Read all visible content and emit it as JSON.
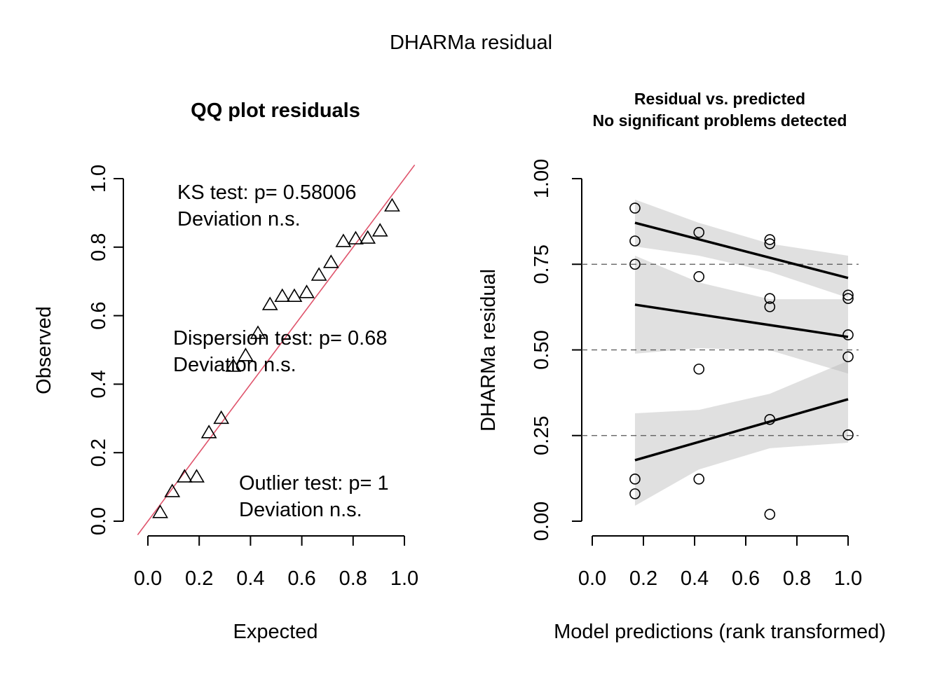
{
  "title": "DHARMa residual",
  "chart_data": [
    {
      "type": "scatter",
      "title": "QQ plot residuals",
      "xlabel": "Expected",
      "ylabel": "Observed",
      "xlim": [
        0,
        1
      ],
      "ylim": [
        0,
        1
      ],
      "xticks": [
        "0.0",
        "0.2",
        "0.4",
        "0.6",
        "0.8",
        "1.0"
      ],
      "yticks": [
        "0.0",
        "0.2",
        "0.4",
        "0.6",
        "0.8",
        "1.0"
      ],
      "reference_line": {
        "slope": 1,
        "intercept": 0,
        "color": "#DF536B"
      },
      "expected": [
        0.048,
        0.095,
        0.143,
        0.19,
        0.238,
        0.286,
        0.333,
        0.381,
        0.429,
        0.476,
        0.524,
        0.571,
        0.619,
        0.667,
        0.714,
        0.762,
        0.81,
        0.857,
        0.905,
        0.952
      ],
      "observed": [
        0.025,
        0.086,
        0.129,
        0.129,
        0.258,
        0.3,
        0.452,
        0.483,
        0.548,
        0.632,
        0.656,
        0.656,
        0.667,
        0.718,
        0.755,
        0.816,
        0.824,
        0.826,
        0.847,
        0.92
      ],
      "annotations": [
        {
          "lines": [
            "KS test: p= 0.58006",
            "Deviation  n.s."
          ]
        },
        {
          "lines": [
            "Dispersion test: p= 0.68",
            "Deviation  n.s."
          ]
        },
        {
          "lines": [
            "Outlier test: p= 1",
            "Deviation  n.s."
          ]
        }
      ]
    },
    {
      "type": "scatter",
      "title": [
        "Residual vs. predicted",
        "No significant problems detected"
      ],
      "xlabel": "Model predictions (rank transformed)",
      "ylabel": "DHARMa residual",
      "xlim": [
        0,
        1
      ],
      "ylim": [
        0,
        1
      ],
      "xticks": [
        "0.0",
        "0.2",
        "0.4",
        "0.6",
        "0.8",
        "1.0"
      ],
      "yticks": [
        "0.00",
        "0.25",
        "0.50",
        "0.75",
        "1.00"
      ],
      "hlines": [
        0.25,
        0.5,
        0.75
      ],
      "points": {
        "x": [
          0.167,
          0.167,
          0.167,
          0.167,
          0.167,
          0.417,
          0.417,
          0.417,
          0.417,
          0.694,
          0.694,
          0.694,
          0.694,
          0.694,
          0.694,
          1.0,
          1.0,
          1.0,
          1.0,
          1.0
        ],
        "y": [
          0.914,
          0.818,
          0.75,
          0.123,
          0.08,
          0.843,
          0.714,
          0.444,
          0.123,
          0.822,
          0.81,
          0.65,
          0.626,
          0.297,
          0.02,
          0.66,
          0.65,
          0.544,
          0.48,
          0.252
        ]
      },
      "quantile_lines": [
        {
          "quantile": 0.75,
          "x": [
            0.167,
            1.0
          ],
          "y": [
            0.871,
            0.71
          ]
        },
        {
          "quantile": 0.5,
          "x": [
            0.167,
            1.0
          ],
          "y": [
            0.632,
            0.538
          ]
        },
        {
          "quantile": 0.25,
          "x": [
            0.167,
            1.0
          ],
          "y": [
            0.178,
            0.356
          ]
        }
      ],
      "bands": [
        {
          "x": [
            0.167,
            0.417,
            0.694,
            1.0
          ],
          "upper": [
            0.939,
            0.871,
            0.81,
            0.775
          ],
          "lower": [
            0.802,
            0.775,
            0.728,
            0.652
          ]
        },
        {
          "x": [
            0.167,
            0.417,
            0.694,
            1.0
          ],
          "upper": [
            0.775,
            0.697,
            0.648,
            0.648
          ],
          "lower": [
            0.489,
            0.505,
            0.499,
            0.431
          ]
        },
        {
          "x": [
            0.167,
            0.417,
            0.694,
            1.0
          ],
          "upper": [
            0.315,
            0.325,
            0.372,
            0.468
          ],
          "lower": [
            0.045,
            0.151,
            0.213,
            0.229
          ]
        }
      ]
    }
  ]
}
